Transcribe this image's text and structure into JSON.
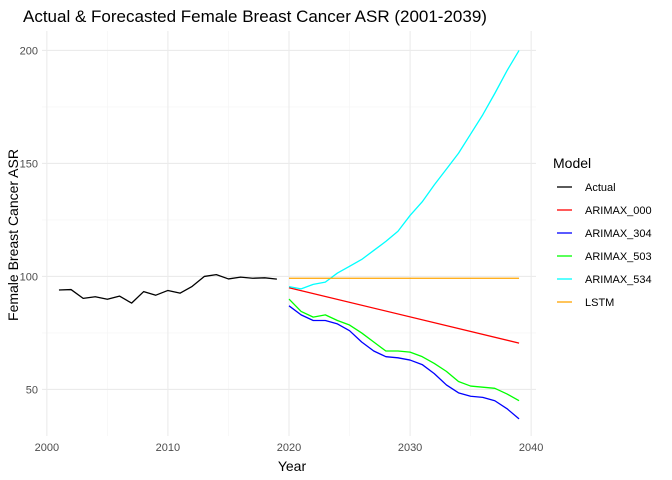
{
  "chart_data": {
    "type": "line",
    "title": "Actual & Forecasted Female Breast Cancer ASR (2001-2039)",
    "xlabel": "Year",
    "ylabel": "Female Breast Cancer ASR",
    "xlim": [
      1999.6,
      2040.4
    ],
    "ylim": [
      29.4,
      208.6
    ],
    "x_ticks": [
      2000,
      2010,
      2020,
      2030,
      2040
    ],
    "y_ticks": [
      50,
      100,
      150,
      200
    ],
    "grid": true,
    "legend": {
      "title": "Model",
      "position": "right"
    },
    "series": [
      {
        "name": "Actual",
        "color": "#000000",
        "x": [
          2001,
          2002,
          2003,
          2004,
          2005,
          2006,
          2007,
          2008,
          2009,
          2010,
          2011,
          2012,
          2013,
          2014,
          2015,
          2016,
          2017,
          2018,
          2019
        ],
        "y": [
          94.0,
          94.2,
          90.3,
          91.0,
          89.9,
          91.3,
          88.2,
          93.3,
          91.7,
          93.8,
          92.6,
          95.6,
          100.0,
          100.8,
          98.9,
          99.7,
          99.2,
          99.4,
          98.8
        ]
      },
      {
        "name": "ARIMAX_000",
        "color": "#ff0000",
        "x": [
          2020,
          2039
        ],
        "y": [
          95.0,
          70.5
        ]
      },
      {
        "name": "ARIMAX_304",
        "color": "#0000ff",
        "x": [
          2020,
          2021,
          2022,
          2023,
          2024,
          2025,
          2026,
          2027,
          2028,
          2029,
          2030,
          2031,
          2032,
          2033,
          2034,
          2035,
          2036,
          2037,
          2038,
          2039
        ],
        "y": [
          87.0,
          83.0,
          80.5,
          80.5,
          79.0,
          76.0,
          71.0,
          67.0,
          64.5,
          64.0,
          63.0,
          61.0,
          57.0,
          52.0,
          48.5,
          47.0,
          46.5,
          45.0,
          41.5,
          37.0
        ]
      },
      {
        "name": "ARIMAX_503",
        "color": "#00ff00",
        "x": [
          2020,
          2021,
          2022,
          2023,
          2024,
          2025,
          2026,
          2027,
          2028,
          2029,
          2030,
          2031,
          2032,
          2033,
          2034,
          2035,
          2036,
          2037,
          2038,
          2039
        ],
        "y": [
          90.0,
          84.5,
          82.0,
          83.0,
          80.5,
          78.5,
          75.0,
          71.0,
          67.0,
          67.0,
          66.5,
          64.5,
          61.5,
          58.0,
          53.5,
          51.5,
          51.0,
          50.5,
          48.0,
          45.0
        ]
      },
      {
        "name": "ARIMAX_534",
        "color": "#00ffff",
        "x": [
          2020,
          2021,
          2022,
          2023,
          2024,
          2025,
          2026,
          2027,
          2028,
          2029,
          2030,
          2031,
          2032,
          2033,
          2034,
          2035,
          2036,
          2037,
          2038,
          2039
        ],
        "y": [
          95.5,
          94.5,
          96.5,
          97.5,
          101.5,
          104.5,
          107.5,
          111.5,
          115.5,
          120.0,
          127.0,
          133.0,
          140.5,
          147.5,
          154.5,
          163.0,
          171.5,
          181.0,
          191.0,
          200.0
        ]
      },
      {
        "name": "LSTM",
        "color": "#ffa500",
        "x": [
          2020,
          2039
        ],
        "y": [
          99.2,
          99.2
        ]
      }
    ]
  }
}
